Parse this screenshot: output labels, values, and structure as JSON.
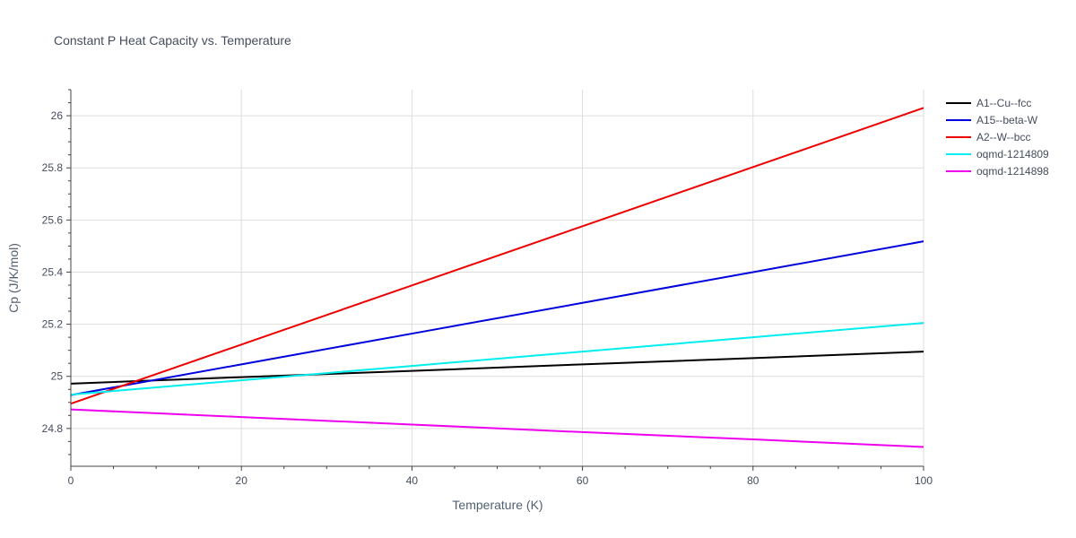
{
  "chart_data": {
    "type": "line",
    "title": "Constant P Heat Capacity vs. Temperature",
    "xlabel": "Temperature (K)",
    "ylabel": "Cp (J/K/mol)",
    "xlim": [
      0,
      100
    ],
    "ylim": [
      24.655,
      26.1
    ],
    "xticks": [
      0,
      20,
      40,
      60,
      80,
      100
    ],
    "xtick_labels": [
      "0",
      "20",
      "40",
      "60",
      "80",
      "100"
    ],
    "yticks": [
      24.8,
      25.0,
      25.2,
      25.4,
      25.6,
      25.8,
      26.0
    ],
    "ytick_labels": [
      "24.8",
      "25",
      "25.2",
      "25.4",
      "25.6",
      "25.8",
      "26"
    ],
    "grid": true,
    "legend_position": "top-right",
    "series": [
      {
        "name": "A1--Cu--fcc",
        "color": "#000000",
        "x": [
          0,
          20,
          40,
          60,
          80,
          100
        ],
        "y": [
          24.972,
          24.997,
          25.021,
          25.046,
          25.07,
          25.095
        ]
      },
      {
        "name": "A15--beta-W",
        "color": "#0000dd",
        "x": [
          0,
          20,
          40,
          60,
          80,
          100
        ],
        "y": [
          24.928,
          25.046,
          25.164,
          25.282,
          25.4,
          25.518
        ]
      },
      {
        "name": "A2--W--bcc",
        "color": "#ee0000",
        "x": [
          0,
          20,
          40,
          60,
          80,
          100
        ],
        "y": [
          24.895,
          25.122,
          25.349,
          25.576,
          25.803,
          26.03
        ]
      },
      {
        "name": "oqmd-1214809",
        "color": "#00eeee",
        "x": [
          0,
          20,
          40,
          60,
          80,
          100
        ],
        "y": [
          24.93,
          24.985,
          25.04,
          25.095,
          25.15,
          25.205
        ]
      },
      {
        "name": "oqmd-1214898",
        "color": "#ee00ee",
        "x": [
          0,
          20,
          40,
          60,
          80,
          100
        ],
        "y": [
          24.873,
          24.844,
          24.815,
          24.786,
          24.758,
          24.729
        ]
      }
    ]
  }
}
